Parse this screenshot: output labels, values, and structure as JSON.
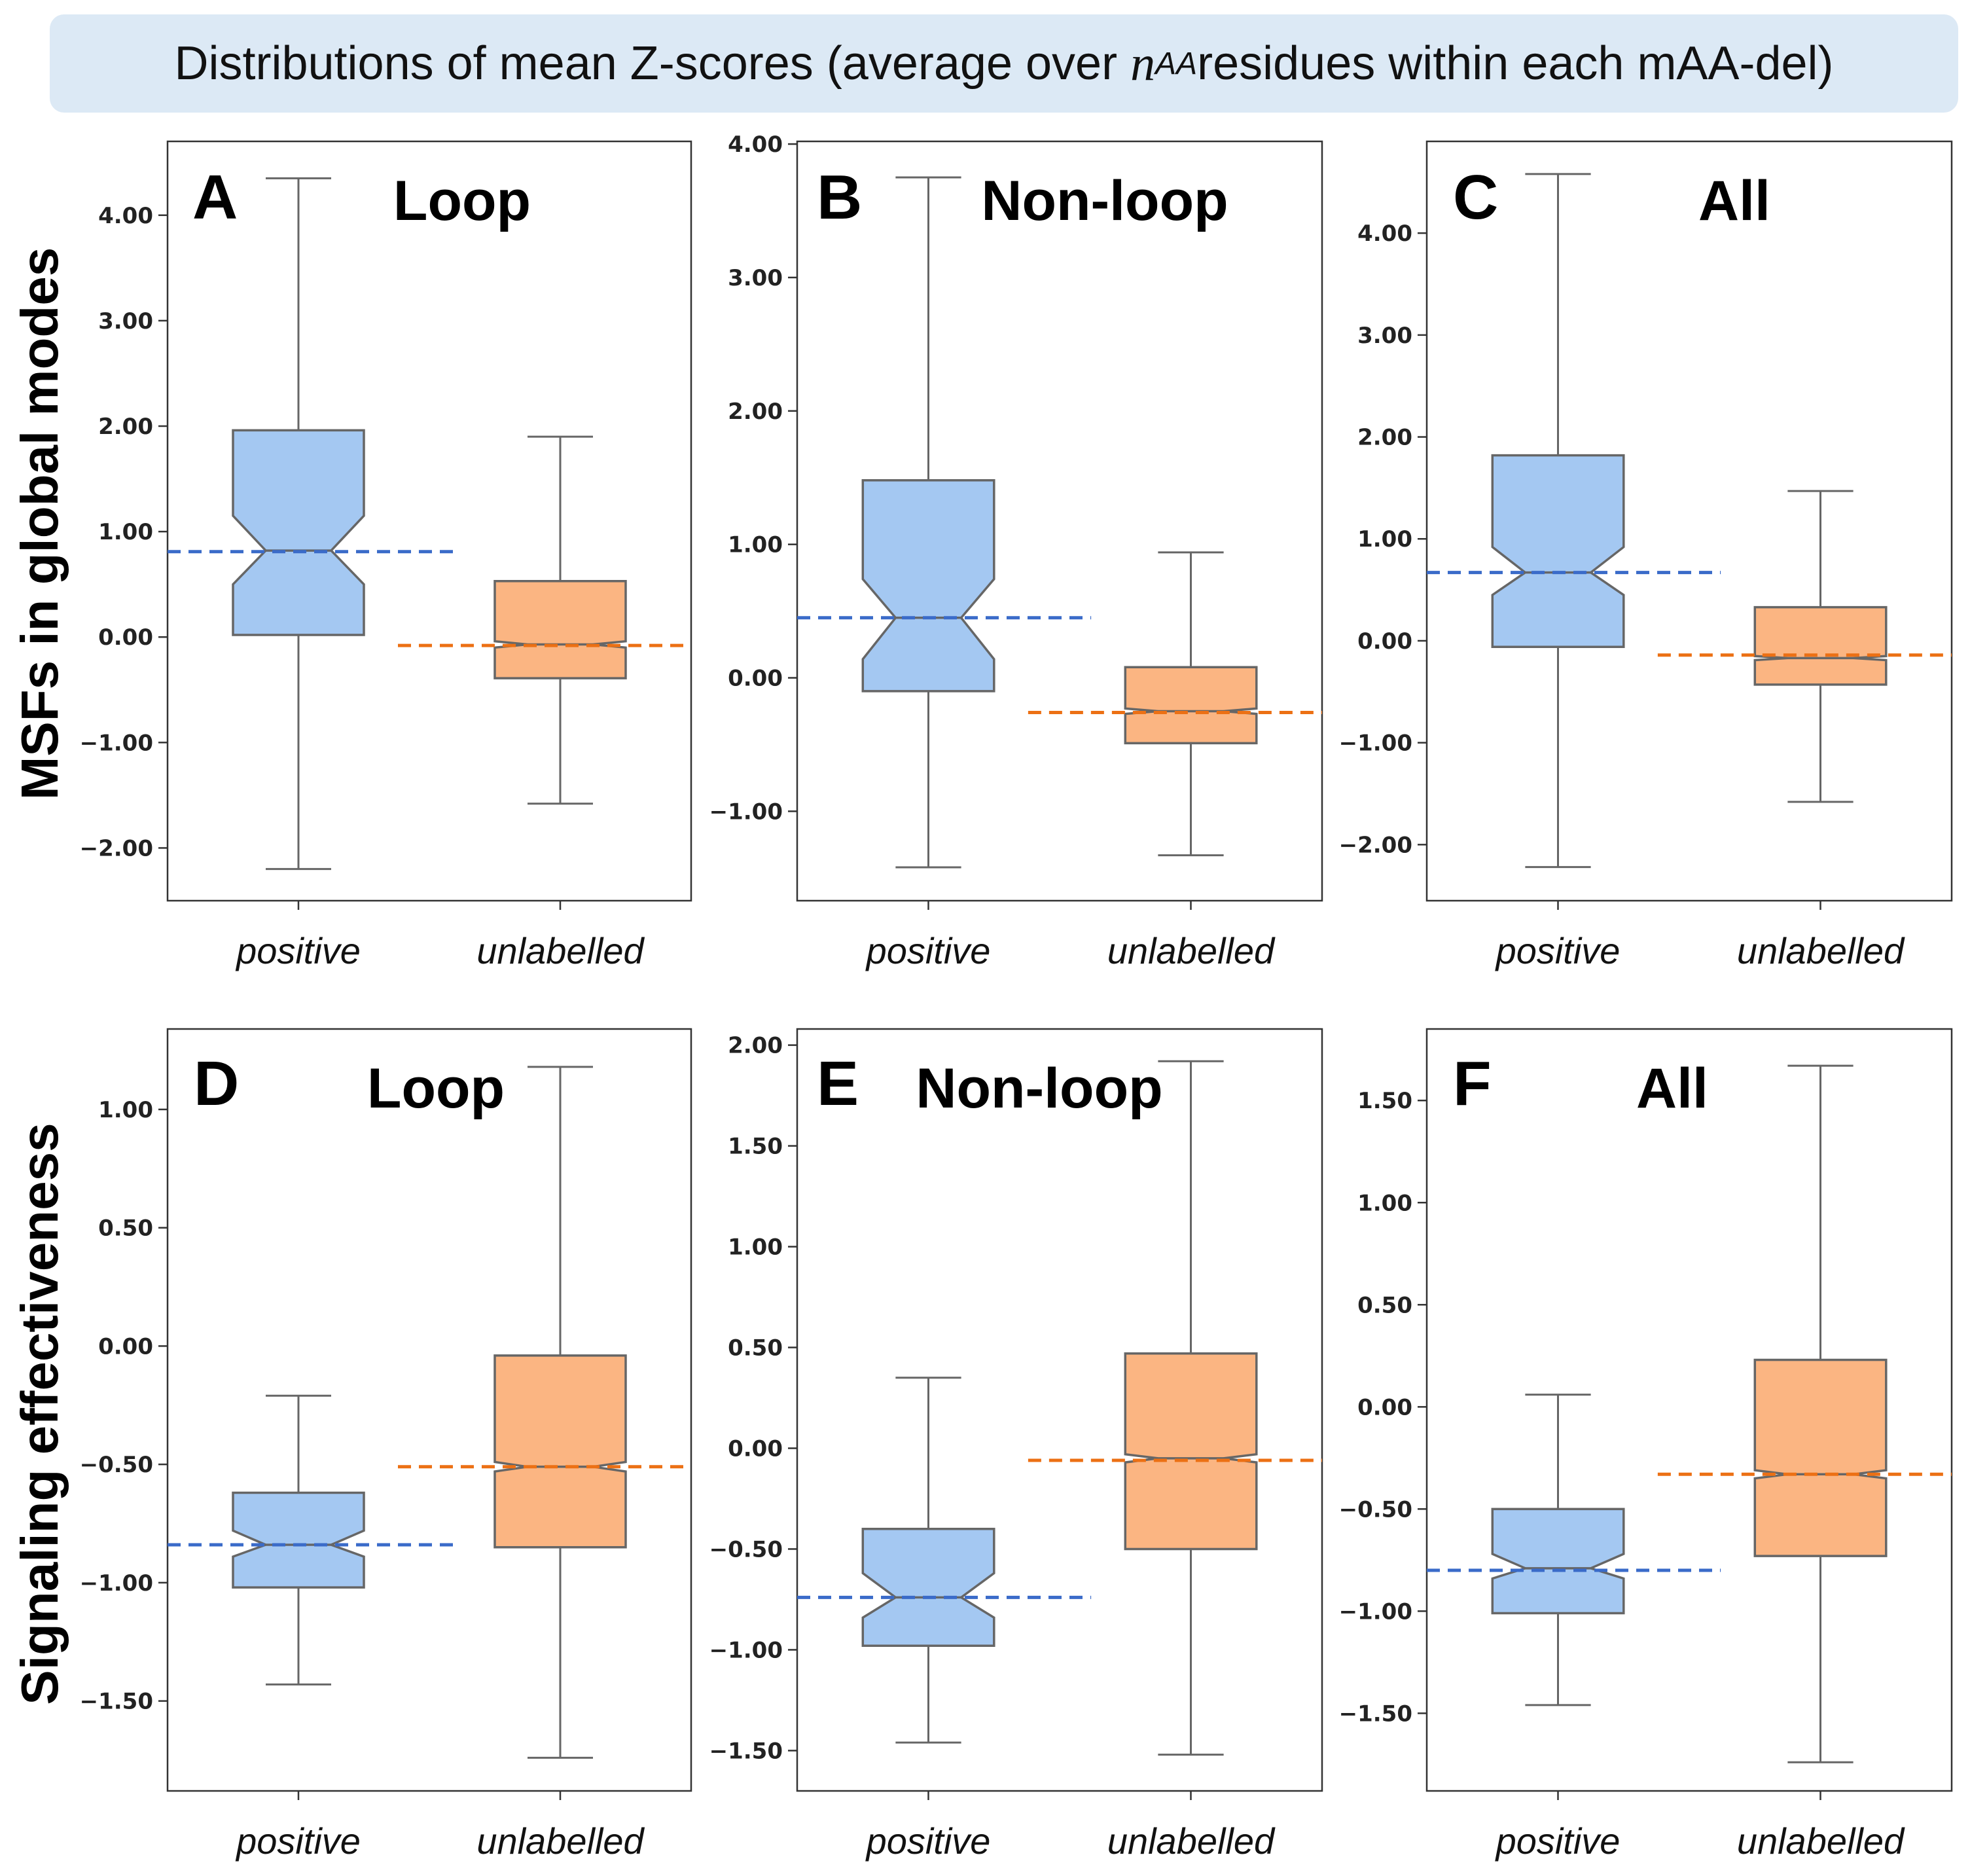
{
  "header": {
    "title_prefix": "Distributions of mean Z-scores (average over ",
    "title_var": "n",
    "title_sub": "AA",
    "title_suffix": " residues within each mAA-del)"
  },
  "colors": {
    "positive_fill": "#a4c8f2",
    "unlabelled_fill": "#fbb582",
    "positive_mean": "#3a6bc9",
    "unlabelled_mean": "#ec7014",
    "box_edge": "#666666",
    "frame": "#333333"
  },
  "row_labels": [
    "MSFs in global modes",
    "Signaling effectiveness"
  ],
  "chart_data": [
    {
      "panel": "A",
      "title": "Loop",
      "type": "boxplot",
      "notched": true,
      "categories": [
        "positive",
        "unlabelled"
      ],
      "ylim": [
        -2.5,
        4.7
      ],
      "yticks": [
        -2,
        -1,
        0,
        1,
        2,
        3,
        4
      ],
      "ytick_labels": [
        "−2.00",
        "−1.00",
        "0.00",
        "1.00",
        "2.00",
        "3.00",
        "4.00"
      ],
      "boxes": [
        {
          "whisker_low": -2.2,
          "q1": 0.02,
          "median": 0.82,
          "q3": 1.96,
          "whisker_high": 4.35,
          "notch_low": 0.5,
          "notch_high": 1.15,
          "mean": 0.81
        },
        {
          "whisker_low": -1.58,
          "q1": -0.39,
          "median": -0.07,
          "q3": 0.53,
          "whisker_high": 1.9,
          "notch_low": -0.1,
          "notch_high": -0.04,
          "mean": -0.08
        }
      ]
    },
    {
      "panel": "B",
      "title": "Non-loop",
      "type": "boxplot",
      "notched": true,
      "categories": [
        "positive",
        "unlabelled"
      ],
      "ylim": [
        -1.67,
        4.02
      ],
      "yticks": [
        -1,
        0,
        1,
        2,
        3,
        4
      ],
      "ytick_labels": [
        "−1.00",
        "0.00",
        "1.00",
        "2.00",
        "3.00",
        "4.00"
      ],
      "boxes": [
        {
          "whisker_low": -1.42,
          "q1": -0.1,
          "median": 0.45,
          "q3": 1.48,
          "whisker_high": 3.75,
          "notch_low": 0.14,
          "notch_high": 0.74,
          "mean": 0.45
        },
        {
          "whisker_low": -1.33,
          "q1": -0.49,
          "median": -0.25,
          "q3": 0.08,
          "whisker_high": 0.94,
          "notch_low": -0.27,
          "notch_high": -0.23,
          "mean": -0.26
        }
      ]
    },
    {
      "panel": "C",
      "title": "All",
      "type": "boxplot",
      "notched": true,
      "categories": [
        "positive",
        "unlabelled"
      ],
      "ylim": [
        -2.55,
        4.9
      ],
      "yticks": [
        -2,
        -1,
        0,
        1,
        2,
        3,
        4
      ],
      "ytick_labels": [
        "−2.00",
        "−1.00",
        "0.00",
        "1.00",
        "2.00",
        "3.00",
        "4.00"
      ],
      "boxes": [
        {
          "whisker_low": -2.22,
          "q1": -0.06,
          "median": 0.67,
          "q3": 1.82,
          "whisker_high": 4.58,
          "notch_low": 0.45,
          "notch_high": 0.92,
          "mean": 0.67
        },
        {
          "whisker_low": -1.58,
          "q1": -0.43,
          "median": -0.17,
          "q3": 0.33,
          "whisker_high": 1.47,
          "notch_low": -0.19,
          "notch_high": -0.15,
          "mean": -0.14
        }
      ]
    },
    {
      "panel": "D",
      "title": "Loop",
      "type": "boxplot",
      "notched": true,
      "categories": [
        "positive",
        "unlabelled"
      ],
      "ylim": [
        -1.88,
        1.34
      ],
      "yticks": [
        -1.5,
        -1,
        -0.5,
        0,
        0.5,
        1
      ],
      "ytick_labels": [
        "−1.50",
        "−1.00",
        "−0.50",
        "0.00",
        "0.50",
        "1.00"
      ],
      "boxes": [
        {
          "whisker_low": -1.43,
          "q1": -1.02,
          "median": -0.84,
          "q3": -0.62,
          "whisker_high": -0.21,
          "notch_low": -0.89,
          "notch_high": -0.78,
          "mean": -0.84
        },
        {
          "whisker_low": -1.74,
          "q1": -0.85,
          "median": -0.51,
          "q3": -0.04,
          "whisker_high": 1.18,
          "notch_low": -0.53,
          "notch_high": -0.49,
          "mean": -0.51
        }
      ]
    },
    {
      "panel": "E",
      "title": "Non-loop",
      "type": "boxplot",
      "notched": true,
      "categories": [
        "positive",
        "unlabelled"
      ],
      "ylim": [
        -1.7,
        2.08
      ],
      "yticks": [
        -1.5,
        -1,
        -0.5,
        0,
        0.5,
        1,
        1.5,
        2
      ],
      "ytick_labels": [
        "−1.50",
        "−1.00",
        "−0.50",
        "0.00",
        "0.50",
        "1.00",
        "1.50",
        "2.00"
      ],
      "boxes": [
        {
          "whisker_low": -1.46,
          "q1": -0.98,
          "median": -0.74,
          "q3": -0.4,
          "whisker_high": 0.35,
          "notch_low": -0.84,
          "notch_high": -0.62,
          "mean": -0.74
        },
        {
          "whisker_low": -1.52,
          "q1": -0.5,
          "median": -0.05,
          "q3": 0.47,
          "whisker_high": 1.92,
          "notch_low": -0.07,
          "notch_high": -0.03,
          "mean": -0.06
        }
      ]
    },
    {
      "panel": "F",
      "title": "All",
      "type": "boxplot",
      "notched": true,
      "categories": [
        "positive",
        "unlabelled"
      ],
      "ylim": [
        -1.88,
        1.85
      ],
      "yticks": [
        -1.5,
        -1,
        -0.5,
        0,
        0.5,
        1,
        1.5
      ],
      "ytick_labels": [
        "−1.50",
        "−1.00",
        "−0.50",
        "0.00",
        "0.50",
        "1.00",
        "1.50"
      ],
      "boxes": [
        {
          "whisker_low": -1.46,
          "q1": -1.01,
          "median": -0.79,
          "q3": -0.5,
          "whisker_high": 0.06,
          "notch_low": -0.84,
          "notch_high": -0.72,
          "mean": -0.8
        },
        {
          "whisker_low": -1.74,
          "q1": -0.73,
          "median": -0.33,
          "q3": 0.23,
          "whisker_high": 1.67,
          "notch_low": -0.35,
          "notch_high": -0.31,
          "mean": -0.33
        }
      ]
    }
  ]
}
